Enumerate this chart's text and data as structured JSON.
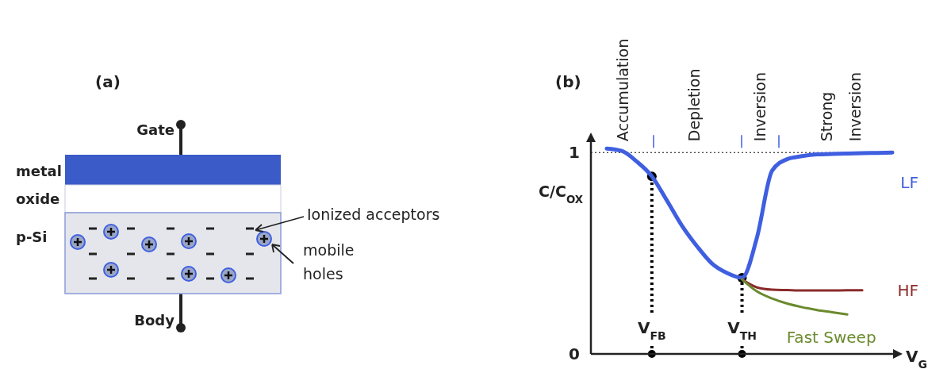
{
  "chart_data": [
    {
      "type": "other",
      "title": "(a)",
      "annotations": [
        "Gate",
        "metal",
        "oxide",
        "p-Si",
        "Body",
        "Ionized acceptors",
        "mobile holes"
      ]
    },
    {
      "type": "line",
      "title": "(b)",
      "xlabel": "V$_{G}$",
      "ylabel": "C/C$_{OX}$",
      "ylim": [
        0,
        1.06
      ],
      "yticks": [
        0,
        1
      ],
      "legend": false,
      "grid": false,
      "categories": [
        null,
        null,
        null,
        "V$_{FB}$",
        null,
        null,
        null,
        null,
        null,
        "V$_{TH}$",
        null,
        null,
        null,
        null,
        null,
        null,
        null,
        null,
        null,
        null
      ],
      "series": [
        {
          "name": "LF",
          "color": "#3f5fe0",
          "values": [
            1.02,
            1.008,
            0.955,
            0.882,
            0.762,
            0.637,
            0.535,
            0.449,
            0.402,
            0.378,
            0.58,
            0.91,
            0.967,
            0.982,
            0.991,
            0.993,
            0.995,
            0.997,
            0.998,
            1.0
          ]
        },
        {
          "name": "HF",
          "color": "#8b2a2a",
          "values": [
            null,
            null,
            null,
            null,
            null,
            null,
            null,
            null,
            null,
            0.37,
            0.33,
            0.319,
            0.317,
            0.315,
            0.315,
            0.315,
            0.316,
            0.316,
            null,
            null
          ]
        },
        {
          "name": "Fast Sweep",
          "color": "#6b8a2e",
          "values": [
            null,
            null,
            null,
            null,
            null,
            null,
            null,
            null,
            null,
            0.37,
            0.31,
            0.275,
            0.25,
            0.232,
            0.218,
            0.207,
            0.196,
            null,
            null,
            null
          ]
        }
      ],
      "ref_lines": [
        {
          "axis": "y",
          "value": 1,
          "line_style": "dotted",
          "color": "#000000"
        }
      ],
      "annotations": [
        "Accumulation",
        "Depletion",
        "Inversion",
        "Strong Inversion"
      ]
    }
  ]
}
